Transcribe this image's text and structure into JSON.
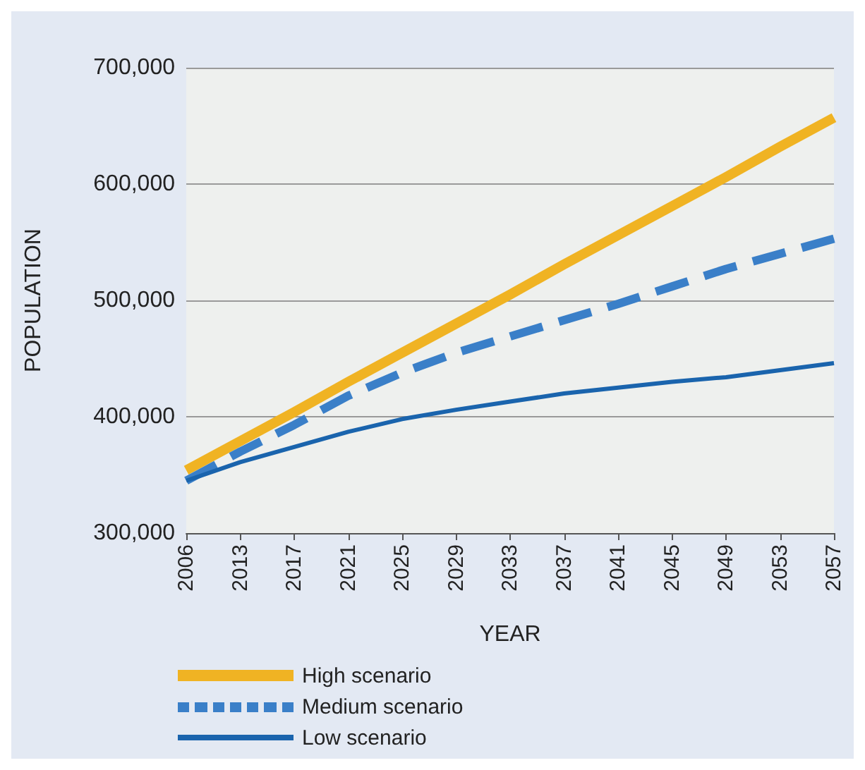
{
  "chart_data": {
    "type": "line",
    "xlabel": "YEAR",
    "ylabel": "POPULATION",
    "categories": [
      "2006",
      "2013",
      "2017",
      "2021",
      "2025",
      "2029",
      "2033",
      "2037",
      "2041",
      "2045",
      "2049",
      "2053",
      "2057"
    ],
    "series": [
      {
        "name": "High scenario",
        "color": "#f0b323",
        "line_style": "solid",
        "values": [
          354000,
          379000,
          404000,
          430000,
          455000,
          480000,
          505000,
          531000,
          556000,
          581000,
          606000,
          632000,
          657000
        ]
      },
      {
        "name": "Medium scenario",
        "color": "#3a7fc8",
        "line_style": "dashed",
        "values": [
          345000,
          370000,
          393000,
          418000,
          438000,
          455000,
          469000,
          483000,
          497000,
          512000,
          527000,
          540000,
          553000
        ]
      },
      {
        "name": "Low scenario",
        "color": "#1a64ad",
        "line_style": "solid",
        "values": [
          345000,
          361000,
          374000,
          387000,
          398000,
          406000,
          413000,
          420000,
          425000,
          430000,
          434000,
          440000,
          446000
        ]
      }
    ],
    "ylim": [
      300000,
      700000
    ],
    "yticks": [
      {
        "value": 300000,
        "label": "300,000"
      },
      {
        "value": 400000,
        "label": "400,000"
      },
      {
        "value": 500000,
        "label": "500,000"
      },
      {
        "value": 600000,
        "label": "600,000"
      },
      {
        "value": 700000,
        "label": "700,000"
      }
    ],
    "grid": "y",
    "legend": "bottom",
    "marker": "none"
  }
}
